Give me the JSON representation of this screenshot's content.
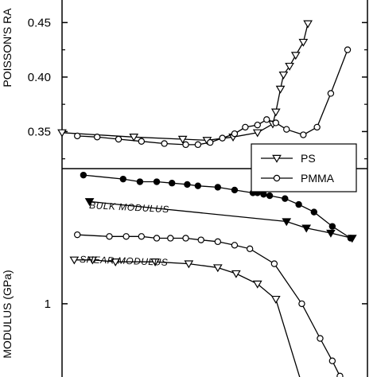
{
  "chart_data": [
    {
      "type": "line",
      "ylabel": "POISSON'S RA",
      "y_ticks": [
        "0.35",
        "0.40",
        "0.45"
      ],
      "ylim": [
        0.316,
        0.478
      ],
      "xlim": [
        0,
        1
      ],
      "grid": false,
      "legend": {
        "placement": "bottom-right",
        "entries": [
          {
            "name": "PS",
            "marker": "triangle-down-open"
          },
          {
            "name": "PMMA",
            "marker": "circle-open"
          }
        ]
      },
      "series": [
        {
          "name": "PS",
          "marker": "triangle-down-open",
          "x": [
            0.0,
            0.235,
            0.395,
            0.475,
            0.56,
            0.64,
            0.69,
            0.7,
            0.715,
            0.725,
            0.745,
            0.765,
            0.79,
            0.805
          ],
          "y": [
            0.349,
            0.345,
            0.343,
            0.342,
            0.345,
            0.349,
            0.357,
            0.368,
            0.389,
            0.402,
            0.41,
            0.42,
            0.432,
            0.449
          ]
        },
        {
          "name": "PMMA",
          "marker": "circle-open",
          "x": [
            0.05,
            0.115,
            0.185,
            0.26,
            0.335,
            0.405,
            0.445,
            0.485,
            0.525,
            0.565,
            0.6,
            0.64,
            0.67,
            0.7,
            0.735,
            0.79,
            0.835,
            0.88,
            0.935
          ],
          "y": [
            0.346,
            0.345,
            0.343,
            0.341,
            0.339,
            0.338,
            0.338,
            0.34,
            0.344,
            0.348,
            0.354,
            0.356,
            0.361,
            0.358,
            0.352,
            0.347,
            0.354,
            0.385,
            0.425
          ]
        }
      ]
    },
    {
      "type": "line",
      "ylabel": "MODULUS (GPa)",
      "y_scale": "log",
      "y_ticks": [
        "1"
      ],
      "ylim": [
        0.7,
        1.8
      ],
      "xlim": [
        0,
        1
      ],
      "grid": false,
      "annotations": [
        "BULK MODULUS",
        "SHEAR MODULUS"
      ],
      "series": [
        {
          "name": "PMMA bulk",
          "marker": "circle-filled",
          "x": [
            0.07,
            0.2,
            0.255,
            0.31,
            0.36,
            0.41,
            0.445,
            0.51,
            0.565,
            0.625,
            0.64,
            0.66,
            0.68,
            0.73,
            0.775,
            0.825,
            0.885,
            0.945
          ],
          "y": [
            1.75,
            1.72,
            1.7,
            1.7,
            1.69,
            1.68,
            1.67,
            1.66,
            1.64,
            1.62,
            1.62,
            1.61,
            1.6,
            1.58,
            1.54,
            1.49,
            1.4,
            1.33
          ]
        },
        {
          "name": "PS bulk",
          "marker": "triangle-down-filled",
          "x": [
            0.09,
            0.735,
            0.8,
            0.88,
            0.95
          ],
          "y": [
            1.56,
            1.43,
            1.39,
            1.36,
            1.33
          ]
        },
        {
          "name": "PMMA shear",
          "marker": "circle-open",
          "x": [
            0.05,
            0.155,
            0.21,
            0.26,
            0.31,
            0.355,
            0.405,
            0.455,
            0.51,
            0.565,
            0.615,
            0.695,
            0.785,
            0.845,
            0.885,
            0.91,
            0.93
          ],
          "y": [
            1.35,
            1.34,
            1.34,
            1.34,
            1.33,
            1.33,
            1.33,
            1.32,
            1.31,
            1.29,
            1.27,
            1.19,
            1.0,
            0.86,
            0.78,
            0.73,
            0.69
          ]
        },
        {
          "name": "PS shear",
          "marker": "triangle-down-open",
          "x": [
            0.04,
            0.1,
            0.175,
            0.305,
            0.415,
            0.51,
            0.57,
            0.64,
            0.7,
            0.79
          ],
          "y": [
            1.21,
            1.21,
            1.2,
            1.2,
            1.19,
            1.17,
            1.14,
            1.09,
            1.02,
            0.69
          ]
        }
      ]
    }
  ]
}
